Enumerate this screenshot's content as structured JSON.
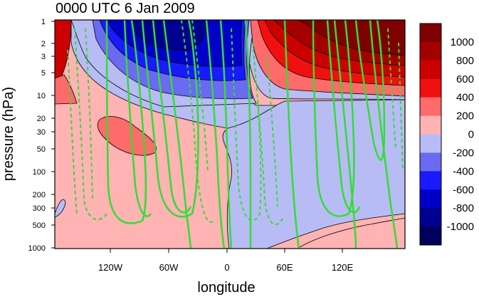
{
  "chart_data": {
    "type": "heatmap",
    "title": "0000 UTC 6 Jan 2009",
    "xlabel": "longitude",
    "ylabel": "pressure (hPa)",
    "x_ticks": [
      "120W",
      "60W",
      "0",
      "60E",
      "120E"
    ],
    "y_ticks": [
      "1",
      "2",
      "3",
      "5",
      "10",
      "20",
      "30",
      "50",
      "100",
      "200",
      "300",
      "500",
      "1000"
    ],
    "y_scale": "log",
    "colorbar": {
      "labels": [
        "1000",
        "800",
        "600",
        "400",
        "200",
        "0",
        "-200",
        "-400",
        "-600",
        "-800",
        "-1000"
      ],
      "colors": [
        "#7f0000",
        "#a50000",
        "#cc0000",
        "#f01010",
        "#ff6a6a",
        "#ffb3b3",
        "#b8bcf5",
        "#6a6af2",
        "#1a1aff",
        "#0000c8",
        "#000090",
        "#00005a"
      ]
    },
    "overlay_contours": {
      "color": "#33dd33",
      "solid": "positive",
      "dashed": "negative"
    },
    "fields": {
      "negative_anomaly": "western hemisphere upper levels (1-10 hPa), minimum near 60W",
      "positive_anomaly": "eastern hemisphere upper levels (1-10 hPa), maximum near 140E"
    }
  }
}
